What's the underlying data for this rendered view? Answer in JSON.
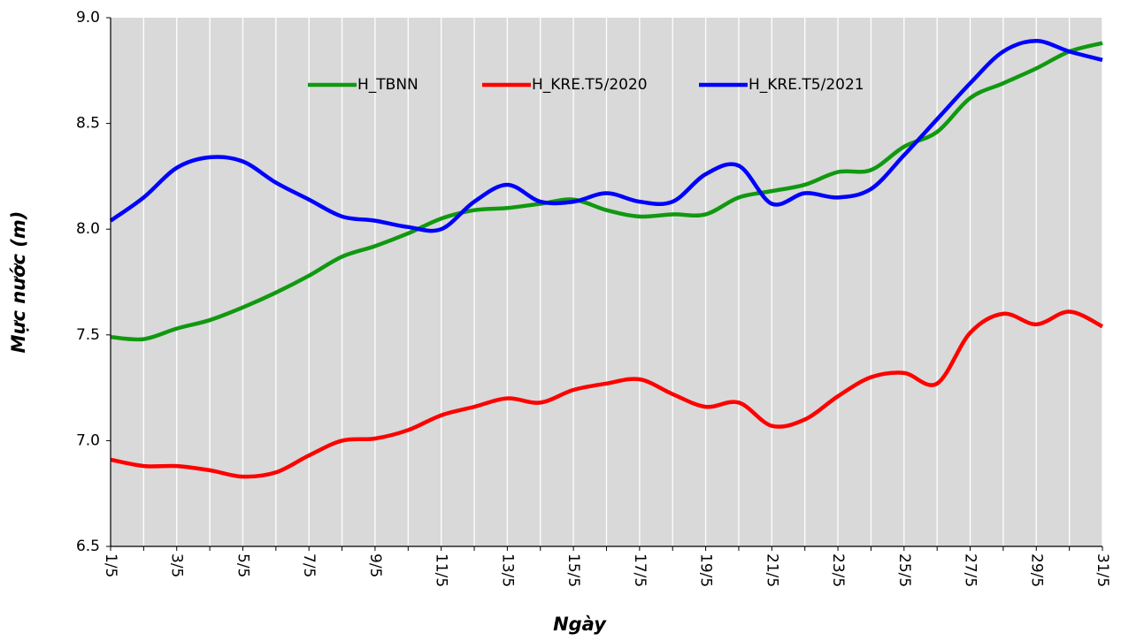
{
  "chart_data": {
    "type": "line",
    "x_label": "Ngày",
    "y_label": "Mực nước (m)",
    "categories": [
      "1/5",
      null,
      "3/5",
      null,
      "5/5",
      null,
      "7/5",
      null,
      "9/5",
      null,
      "11/5",
      null,
      "13/5",
      null,
      "15/5",
      null,
      "17/5",
      null,
      "19/5",
      null,
      "21/5",
      null,
      "23/5",
      null,
      "25/5",
      null,
      "27/5",
      null,
      "29/5",
      null,
      "31/5"
    ],
    "series": [
      {
        "name": "H_TBNN",
        "color": "#109910",
        "values": [
          7.49,
          7.48,
          7.53,
          7.57,
          7.63,
          7.7,
          7.78,
          7.87,
          7.92,
          7.98,
          8.05,
          8.09,
          8.1,
          8.12,
          8.14,
          8.09,
          8.06,
          8.07,
          8.07,
          8.15,
          8.18,
          8.21,
          8.27,
          8.28,
          8.39,
          8.46,
          8.62,
          8.69,
          8.76,
          8.84,
          8.88
        ]
      },
      {
        "name": "H_KRE.T5/2020",
        "color": "#ff0000",
        "values": [
          6.91,
          6.88,
          6.88,
          6.86,
          6.83,
          6.85,
          6.93,
          7.0,
          7.01,
          7.05,
          7.12,
          7.16,
          7.2,
          7.18,
          7.24,
          7.27,
          7.29,
          7.22,
          7.16,
          7.18,
          7.07,
          7.1,
          7.21,
          7.3,
          7.32,
          7.27,
          7.51,
          7.6,
          7.55,
          7.61,
          7.54
        ]
      },
      {
        "name": "H_KRE.T5/2021",
        "color": "#0000ff",
        "values": [
          8.04,
          8.15,
          8.29,
          8.34,
          8.32,
          8.22,
          8.14,
          8.06,
          8.04,
          8.01,
          8.0,
          8.13,
          8.21,
          8.13,
          8.13,
          8.17,
          8.13,
          8.13,
          8.26,
          8.3,
          8.12,
          8.17,
          8.15,
          8.19,
          8.35,
          8.52,
          8.69,
          8.84,
          8.89,
          8.84,
          8.8
        ]
      }
    ],
    "ylim": [
      6.5,
      9.0
    ],
    "yticks": [
      6.5,
      {
        "value": 7.0,
        "label": "7.0"
      },
      7.5,
      {
        "value": 8.0,
        "label": "8.0"
      },
      8.5,
      {
        "value": 9.0,
        "label": "9.0"
      }
    ],
    "xgrid": true,
    "legend": "top"
  }
}
